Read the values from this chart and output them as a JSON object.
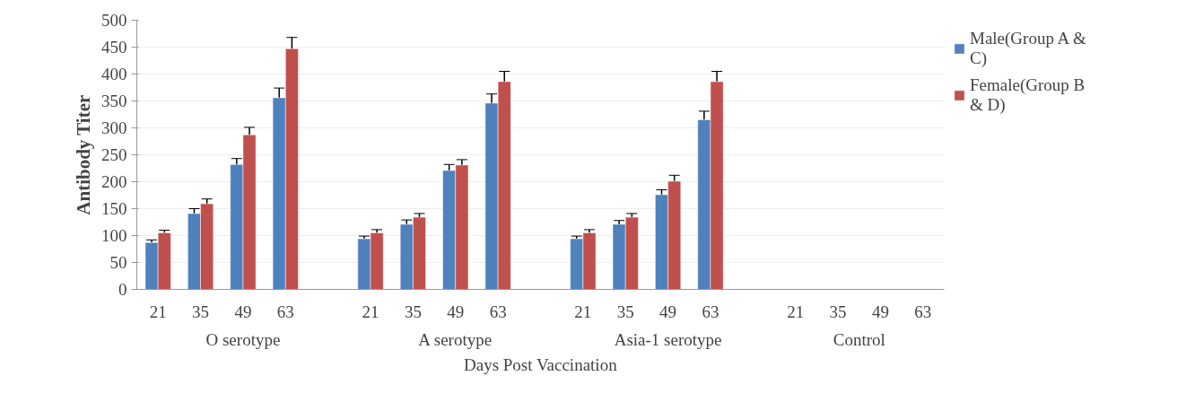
{
  "chart_data": {
    "type": "bar",
    "ylabel": "Antibody Titer",
    "xlabel": "Days Post Vaccination",
    "categories": [
      "21",
      "35",
      "49",
      "63",
      null,
      "21",
      "35",
      "49",
      "63",
      null,
      "21",
      "35",
      "49",
      "63",
      null,
      "21",
      "35",
      "49",
      "63"
    ],
    "annotations": [
      "O serotype",
      "A serotype",
      "Asia-1 serotype",
      "Control"
    ],
    "series": [
      {
        "name": "Male(Group A & C)",
        "color": "#4f81bd",
        "values": [
          87,
          141,
          232,
          356,
          null,
          94,
          121,
          221,
          346,
          null,
          94,
          121,
          176,
          315,
          null,
          null,
          null,
          null,
          null
        ],
        "errors": [
          5,
          9,
          11,
          18,
          null,
          5,
          8,
          11,
          17,
          null,
          5,
          7,
          9,
          16,
          null,
          null,
          null,
          null,
          null
        ]
      },
      {
        "name": "Female(Group B & D)",
        "color": "#c0504d",
        "values": [
          105,
          159,
          287,
          447,
          null,
          105,
          134,
          231,
          386,
          null,
          105,
          134,
          201,
          386,
          null,
          null,
          null,
          null,
          null
        ],
        "errors": [
          5,
          9,
          14,
          21,
          null,
          6,
          7,
          10,
          19,
          null,
          6,
          7,
          11,
          19,
          null,
          null,
          null,
          null,
          null
        ]
      }
    ],
    "ylim": [
      0,
      500
    ],
    "yticks": [
      0,
      50,
      100,
      150,
      200,
      250,
      300,
      350,
      400,
      450,
      500
    ],
    "grid": "y",
    "legend": "top right"
  }
}
